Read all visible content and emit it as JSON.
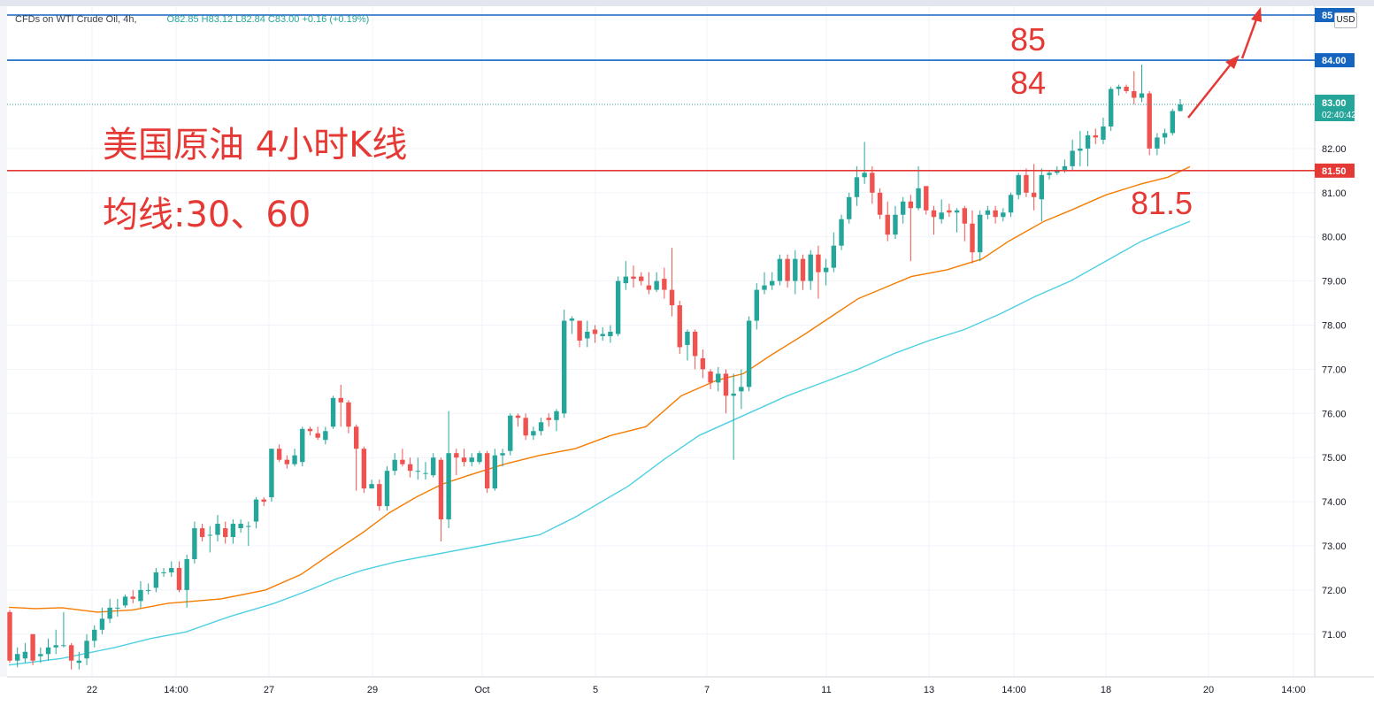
{
  "header": {
    "symbol_line": "CFDs on WTI Crude Oil, 4h,",
    "ohlc": "O82.85 H83.12 L82.84 C83.00 +0.16 (+0.19%)",
    "currency": "USD"
  },
  "annotations": {
    "title": "美国原油 4小时K线",
    "subtitle": "均线:30、60",
    "level_85": "85",
    "level_84": "84",
    "level_815": "81.5"
  },
  "price_tags": {
    "top_partial": "85",
    "p84": "84.00",
    "current_price": "83.00",
    "countdown": "02:40:42",
    "p815": "81.50"
  },
  "colors": {
    "up": "#26a69a",
    "down": "#ef5350",
    "ma30": "#f57c00",
    "ma60": "#4dd0e1",
    "resistance": "#1565c0",
    "support": "#e53935",
    "annotation": "#e53935"
  },
  "chart_data": {
    "type": "candlestick",
    "title": "CFDs on WTI Crude Oil, 4h",
    "ylim": [
      70.1,
      85.1
    ],
    "y_ticks": [
      "71.00",
      "72.00",
      "73.00",
      "74.00",
      "75.00",
      "76.00",
      "77.00",
      "78.00",
      "79.00",
      "80.00",
      "81.00",
      "82.00"
    ],
    "x_ticks": [
      "22",
      "14:00",
      "27",
      "29",
      "Oct",
      "5",
      "7",
      "11",
      "13",
      "14:00",
      "18",
      "20",
      "14:00"
    ],
    "candles": [
      [
        71.5,
        70.4,
        71.55,
        70.35
      ],
      [
        70.4,
        70.55,
        70.7,
        70.25
      ],
      [
        70.45,
        70.6,
        70.8,
        70.35
      ],
      [
        71.0,
        70.4,
        71.0,
        70.3
      ],
      [
        70.5,
        70.55,
        70.7,
        70.35
      ],
      [
        70.55,
        70.7,
        70.9,
        70.4
      ],
      [
        70.7,
        70.75,
        71.1,
        70.55
      ],
      [
        70.75,
        70.75,
        71.5,
        70.7
      ],
      [
        70.75,
        70.4,
        70.8,
        70.2
      ],
      [
        70.35,
        70.4,
        70.6,
        70.2
      ],
      [
        70.45,
        70.85,
        71.0,
        70.3
      ],
      [
        70.85,
        71.1,
        71.2,
        70.7
      ],
      [
        71.1,
        71.35,
        71.6,
        71.0
      ],
      [
        71.35,
        71.6,
        71.8,
        71.25
      ],
      [
        71.6,
        71.6,
        71.8,
        71.4
      ],
      [
        71.65,
        71.85,
        71.9,
        71.6
      ],
      [
        71.85,
        71.8,
        72.0,
        71.7
      ],
      [
        71.75,
        72.0,
        72.2,
        71.6
      ],
      [
        72.0,
        72.0,
        72.15,
        71.9
      ],
      [
        72.05,
        72.4,
        72.5,
        71.95
      ],
      [
        72.4,
        72.4,
        72.5,
        72.3
      ],
      [
        72.4,
        72.5,
        72.65,
        72.3
      ],
      [
        72.5,
        72.0,
        72.65,
        71.95
      ],
      [
        72.0,
        72.7,
        72.8,
        71.6
      ],
      [
        72.7,
        73.4,
        73.55,
        72.6
      ],
      [
        73.4,
        73.2,
        73.5,
        73.1
      ],
      [
        73.25,
        73.25,
        73.45,
        72.85
      ],
      [
        73.25,
        73.5,
        73.7,
        73.1
      ],
      [
        73.4,
        73.2,
        73.55,
        73.05
      ],
      [
        73.2,
        73.5,
        73.6,
        73.05
      ],
      [
        73.4,
        73.5,
        73.6,
        73.3
      ],
      [
        73.45,
        73.45,
        73.55,
        73.0
      ],
      [
        73.55,
        74.05,
        74.1,
        73.4
      ],
      [
        74.05,
        74.0,
        74.1,
        73.9
      ],
      [
        74.1,
        75.2,
        75.2,
        74.0
      ],
      [
        75.2,
        74.95,
        75.3,
        74.9
      ],
      [
        74.95,
        74.85,
        75.05,
        74.75
      ],
      [
        74.85,
        75.05,
        75.2,
        74.8
      ],
      [
        74.9,
        75.65,
        75.7,
        74.8
      ],
      [
        75.65,
        75.6,
        75.7,
        75.5
      ],
      [
        75.55,
        75.45,
        75.7,
        75.4
      ],
      [
        75.4,
        75.6,
        75.7,
        75.3
      ],
      [
        75.7,
        76.35,
        76.4,
        75.65
      ],
      [
        76.35,
        76.25,
        76.65,
        75.7
      ],
      [
        76.25,
        75.7,
        76.3,
        75.55
      ],
      [
        75.7,
        75.2,
        75.75,
        74.25
      ],
      [
        75.2,
        74.3,
        75.25,
        74.2
      ],
      [
        74.3,
        74.4,
        74.5,
        74.3
      ],
      [
        74.4,
        73.9,
        74.5,
        73.8
      ],
      [
        73.9,
        74.7,
        74.8,
        73.8
      ],
      [
        74.7,
        74.95,
        75.1,
        74.6
      ],
      [
        74.95,
        74.85,
        75.2,
        74.8
      ],
      [
        74.85,
        74.7,
        75.0,
        74.55
      ],
      [
        74.7,
        74.7,
        75.0,
        74.5
      ],
      [
        74.65,
        74.65,
        74.9,
        74.5
      ],
      [
        74.6,
        75.0,
        75.1,
        74.55
      ],
      [
        74.95,
        73.6,
        75.0,
        73.1
      ],
      [
        73.6,
        75.1,
        76.05,
        73.4
      ],
      [
        75.1,
        75.0,
        75.2,
        74.6
      ],
      [
        75.0,
        74.9,
        75.2,
        74.8
      ],
      [
        74.9,
        75.0,
        75.1,
        74.8
      ],
      [
        74.9,
        75.1,
        75.15,
        74.85
      ],
      [
        75.1,
        74.3,
        75.15,
        74.2
      ],
      [
        74.3,
        75.05,
        75.2,
        74.25
      ],
      [
        75.05,
        75.1,
        75.2,
        74.8
      ],
      [
        75.15,
        75.95,
        76.0,
        75.05
      ],
      [
        75.95,
        75.9,
        76.0,
        75.7
      ],
      [
        75.9,
        75.5,
        76.0,
        75.4
      ],
      [
        75.5,
        75.6,
        75.7,
        75.4
      ],
      [
        75.6,
        75.8,
        75.9,
        75.5
      ],
      [
        75.9,
        75.85,
        76.0,
        75.7
      ],
      [
        75.85,
        76.05,
        76.1,
        75.6
      ],
      [
        76.0,
        78.1,
        78.35,
        75.9
      ],
      [
        78.1,
        78.15,
        78.2,
        77.8
      ],
      [
        78.1,
        77.65,
        78.1,
        77.5
      ],
      [
        77.7,
        77.85,
        78.1,
        77.5
      ],
      [
        77.9,
        77.8,
        78.0,
        77.6
      ],
      [
        77.75,
        77.8,
        77.95,
        77.65
      ],
      [
        77.75,
        77.85,
        78.0,
        77.6
      ],
      [
        77.8,
        79.0,
        79.1,
        77.75
      ],
      [
        78.95,
        79.1,
        79.45,
        78.8
      ],
      [
        79.1,
        79.05,
        79.35,
        78.85
      ],
      [
        79.1,
        79.0,
        79.2,
        78.9
      ],
      [
        78.9,
        78.8,
        79.2,
        78.7
      ],
      [
        78.8,
        79.0,
        79.2,
        78.75
      ],
      [
        79.05,
        78.8,
        79.3,
        78.6
      ],
      [
        78.8,
        78.45,
        79.75,
        78.2
      ],
      [
        78.45,
        77.5,
        78.55,
        77.35
      ],
      [
        77.55,
        77.85,
        77.9,
        77.2
      ],
      [
        77.85,
        77.3,
        77.9,
        77.0
      ],
      [
        77.25,
        77.0,
        77.45,
        76.8
      ],
      [
        76.95,
        76.7,
        77.0,
        76.55
      ],
      [
        76.7,
        76.9,
        77.05,
        76.5
      ],
      [
        76.9,
        76.4,
        77.0,
        76.0
      ],
      [
        76.4,
        76.45,
        76.9,
        74.95
      ],
      [
        76.5,
        76.6,
        77.0,
        76.1
      ],
      [
        76.6,
        78.1,
        78.2,
        76.5
      ],
      [
        78.1,
        78.8,
        78.95,
        77.9
      ],
      [
        78.8,
        78.9,
        79.2,
        78.7
      ],
      [
        78.9,
        79.0,
        79.2,
        78.8
      ],
      [
        79.0,
        79.5,
        79.6,
        78.9
      ],
      [
        79.5,
        79.0,
        79.6,
        78.85
      ],
      [
        79.0,
        79.5,
        79.7,
        78.7
      ],
      [
        79.5,
        79.0,
        79.6,
        78.8
      ],
      [
        79.0,
        79.6,
        79.7,
        78.8
      ],
      [
        79.6,
        79.2,
        79.8,
        78.6
      ],
      [
        79.2,
        79.3,
        79.5,
        78.9
      ],
      [
        79.3,
        79.8,
        80.1,
        79.2
      ],
      [
        79.8,
        80.4,
        80.5,
        79.7
      ],
      [
        80.4,
        80.9,
        81.0,
        80.3
      ],
      [
        80.9,
        81.35,
        81.6,
        80.7
      ],
      [
        81.35,
        81.45,
        82.15,
        81.2
      ],
      [
        81.45,
        81.0,
        81.6,
        80.75
      ],
      [
        81.0,
        80.5,
        81.1,
        80.4
      ],
      [
        80.5,
        80.05,
        80.8,
        79.9
      ],
      [
        80.05,
        80.5,
        80.7,
        79.95
      ],
      [
        80.5,
        80.8,
        80.9,
        80.3
      ],
      [
        80.8,
        80.65,
        80.95,
        79.45
      ],
      [
        80.65,
        81.1,
        81.6,
        80.6
      ],
      [
        81.15,
        80.6,
        81.15,
        80.5
      ],
      [
        80.6,
        80.45,
        80.7,
        80.05
      ],
      [
        80.4,
        80.55,
        80.85,
        80.3
      ],
      [
        80.6,
        80.55,
        80.75,
        80.45
      ],
      [
        80.55,
        80.6,
        80.65,
        80.1
      ],
      [
        80.65,
        80.3,
        80.7,
        79.9
      ],
      [
        80.3,
        79.65,
        80.6,
        79.4
      ],
      [
        79.65,
        80.5,
        80.6,
        79.45
      ],
      [
        80.5,
        80.6,
        80.7,
        80.4
      ],
      [
        80.6,
        80.45,
        80.7,
        80.3
      ],
      [
        80.45,
        80.55,
        80.65,
        80.35
      ],
      [
        80.55,
        80.95,
        81.0,
        80.45
      ],
      [
        80.95,
        81.4,
        81.45,
        80.85
      ],
      [
        81.4,
        81.0,
        81.55,
        80.9
      ],
      [
        81.0,
        80.9,
        81.65,
        80.6
      ],
      [
        80.85,
        81.4,
        81.55,
        80.35
      ],
      [
        81.4,
        81.45,
        81.5,
        81.3
      ],
      [
        81.45,
        81.5,
        81.6,
        81.4
      ],
      [
        81.5,
        81.6,
        81.75,
        81.45
      ],
      [
        81.6,
        81.95,
        82.2,
        81.5
      ],
      [
        81.95,
        82.0,
        82.4,
        81.6
      ],
      [
        82.0,
        82.3,
        82.4,
        81.6
      ],
      [
        82.3,
        82.25,
        82.45,
        82.1
      ],
      [
        82.2,
        82.5,
        82.7,
        82.1
      ],
      [
        82.5,
        83.35,
        83.4,
        82.4
      ],
      [
        83.35,
        83.4,
        83.45,
        83.2
      ],
      [
        83.4,
        83.3,
        83.45,
        83.25
      ],
      [
        83.3,
        83.15,
        83.75,
        83.0
      ],
      [
        83.15,
        83.25,
        83.9,
        83.05
      ],
      [
        83.25,
        82.0,
        83.3,
        81.85
      ],
      [
        82.0,
        82.25,
        82.35,
        81.85
      ],
      [
        82.25,
        82.35,
        82.45,
        82.1
      ],
      [
        82.35,
        82.85,
        82.9,
        82.3
      ],
      [
        82.85,
        83.0,
        83.12,
        82.84
      ]
    ],
    "ma30": [
      [
        0,
        71.61
      ],
      [
        30,
        71.58
      ],
      [
        60,
        71.6
      ],
      [
        100,
        71.5
      ],
      [
        140,
        71.55
      ],
      [
        180,
        71.7
      ],
      [
        240,
        71.8
      ],
      [
        290,
        72.0
      ],
      [
        330,
        72.35
      ],
      [
        370,
        72.9
      ],
      [
        400,
        73.3
      ],
      [
        430,
        73.75
      ],
      [
        460,
        74.1
      ],
      [
        490,
        74.4
      ],
      [
        520,
        74.6
      ],
      [
        560,
        74.85
      ],
      [
        600,
        75.05
      ],
      [
        640,
        75.2
      ],
      [
        680,
        75.5
      ],
      [
        720,
        75.7
      ],
      [
        760,
        76.4
      ],
      [
        800,
        76.75
      ],
      [
        830,
        76.9
      ],
      [
        860,
        77.3
      ],
      [
        900,
        77.8
      ],
      [
        930,
        78.2
      ],
      [
        960,
        78.6
      ],
      [
        990,
        78.85
      ],
      [
        1020,
        79.1
      ],
      [
        1060,
        79.25
      ],
      [
        1100,
        79.5
      ],
      [
        1130,
        79.9
      ],
      [
        1170,
        80.35
      ],
      [
        1200,
        80.6
      ],
      [
        1240,
        80.95
      ],
      [
        1280,
        81.2
      ],
      [
        1310,
        81.35
      ],
      [
        1335,
        81.59
      ]
    ],
    "ma60": [
      [
        0,
        70.3
      ],
      [
        60,
        70.45
      ],
      [
        120,
        70.7
      ],
      [
        160,
        70.9
      ],
      [
        200,
        71.05
      ],
      [
        250,
        71.4
      ],
      [
        300,
        71.7
      ],
      [
        340,
        72.0
      ],
      [
        370,
        72.25
      ],
      [
        400,
        72.45
      ],
      [
        440,
        72.65
      ],
      [
        480,
        72.8
      ],
      [
        520,
        72.95
      ],
      [
        560,
        73.1
      ],
      [
        600,
        73.25
      ],
      [
        640,
        73.65
      ],
      [
        700,
        74.35
      ],
      [
        740,
        74.95
      ],
      [
        780,
        75.5
      ],
      [
        830,
        75.95
      ],
      [
        880,
        76.4
      ],
      [
        920,
        76.7
      ],
      [
        960,
        77.0
      ],
      [
        1000,
        77.35
      ],
      [
        1040,
        77.65
      ],
      [
        1080,
        77.9
      ],
      [
        1120,
        78.25
      ],
      [
        1160,
        78.65
      ],
      [
        1200,
        79.0
      ],
      [
        1240,
        79.45
      ],
      [
        1280,
        79.9
      ],
      [
        1310,
        80.15
      ],
      [
        1335,
        80.35
      ]
    ],
    "levels": [
      {
        "price": 84.0,
        "label": "84.00",
        "color": "#1565c0"
      },
      {
        "price": 81.5,
        "label": "81.50",
        "color": "#e53935"
      }
    ]
  }
}
